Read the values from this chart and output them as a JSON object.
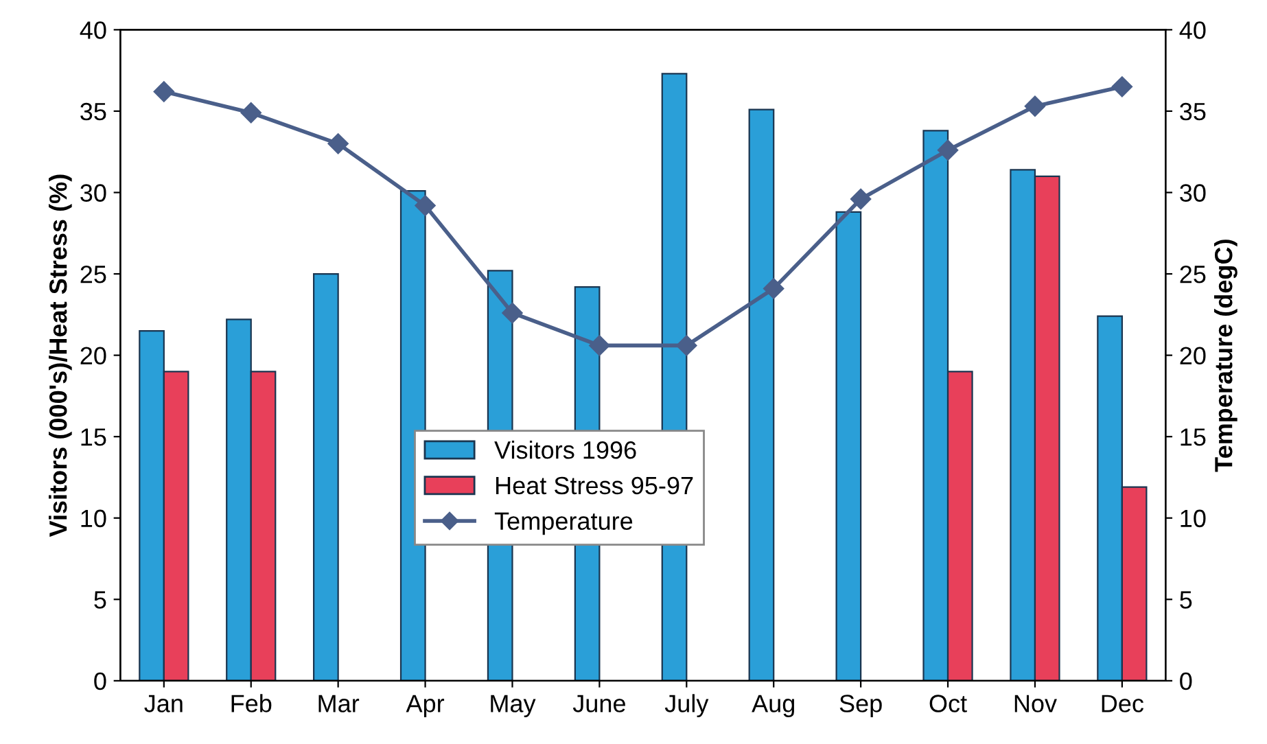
{
  "chart_data": {
    "type": "bar",
    "ylabel": "Visitors (000's)/Heat Stress (%)",
    "y2label": "Temperature (degC)",
    "categories": [
      "Jan",
      "Feb",
      "Mar",
      "Apr",
      "May",
      "June",
      "July",
      "Aug",
      "Sep",
      "Oct",
      "Nov",
      "Dec"
    ],
    "series": [
      {
        "name": "Visitors 1996",
        "color": "#2a9fd8",
        "values": [
          21.5,
          22.2,
          25.0,
          30.1,
          25.2,
          24.2,
          37.3,
          35.1,
          28.8,
          33.8,
          31.4,
          22.4
        ]
      },
      {
        "name": "Heat Stress 95-97",
        "color": "#e8405a",
        "values": [
          19.0,
          19.0,
          null,
          null,
          null,
          null,
          null,
          null,
          null,
          19.0,
          31.0,
          11.9
        ]
      },
      {
        "name": "Temperature",
        "type": "line",
        "axis": "y2",
        "color": "#4a5f8a",
        "marker": "diamond",
        "values": [
          36.2,
          34.9,
          33.0,
          29.2,
          22.6,
          20.6,
          20.6,
          24.1,
          29.6,
          32.6,
          35.3,
          36.5
        ]
      }
    ],
    "ylim": [
      0,
      40
    ],
    "yticks": [
      0,
      5,
      10,
      15,
      20,
      25,
      30,
      35,
      40
    ],
    "y2lim": [
      0,
      40
    ],
    "y2ticks": [
      0,
      5,
      10,
      15,
      20,
      25,
      30,
      35,
      40
    ],
    "grid": false,
    "legend": "bottom center"
  }
}
